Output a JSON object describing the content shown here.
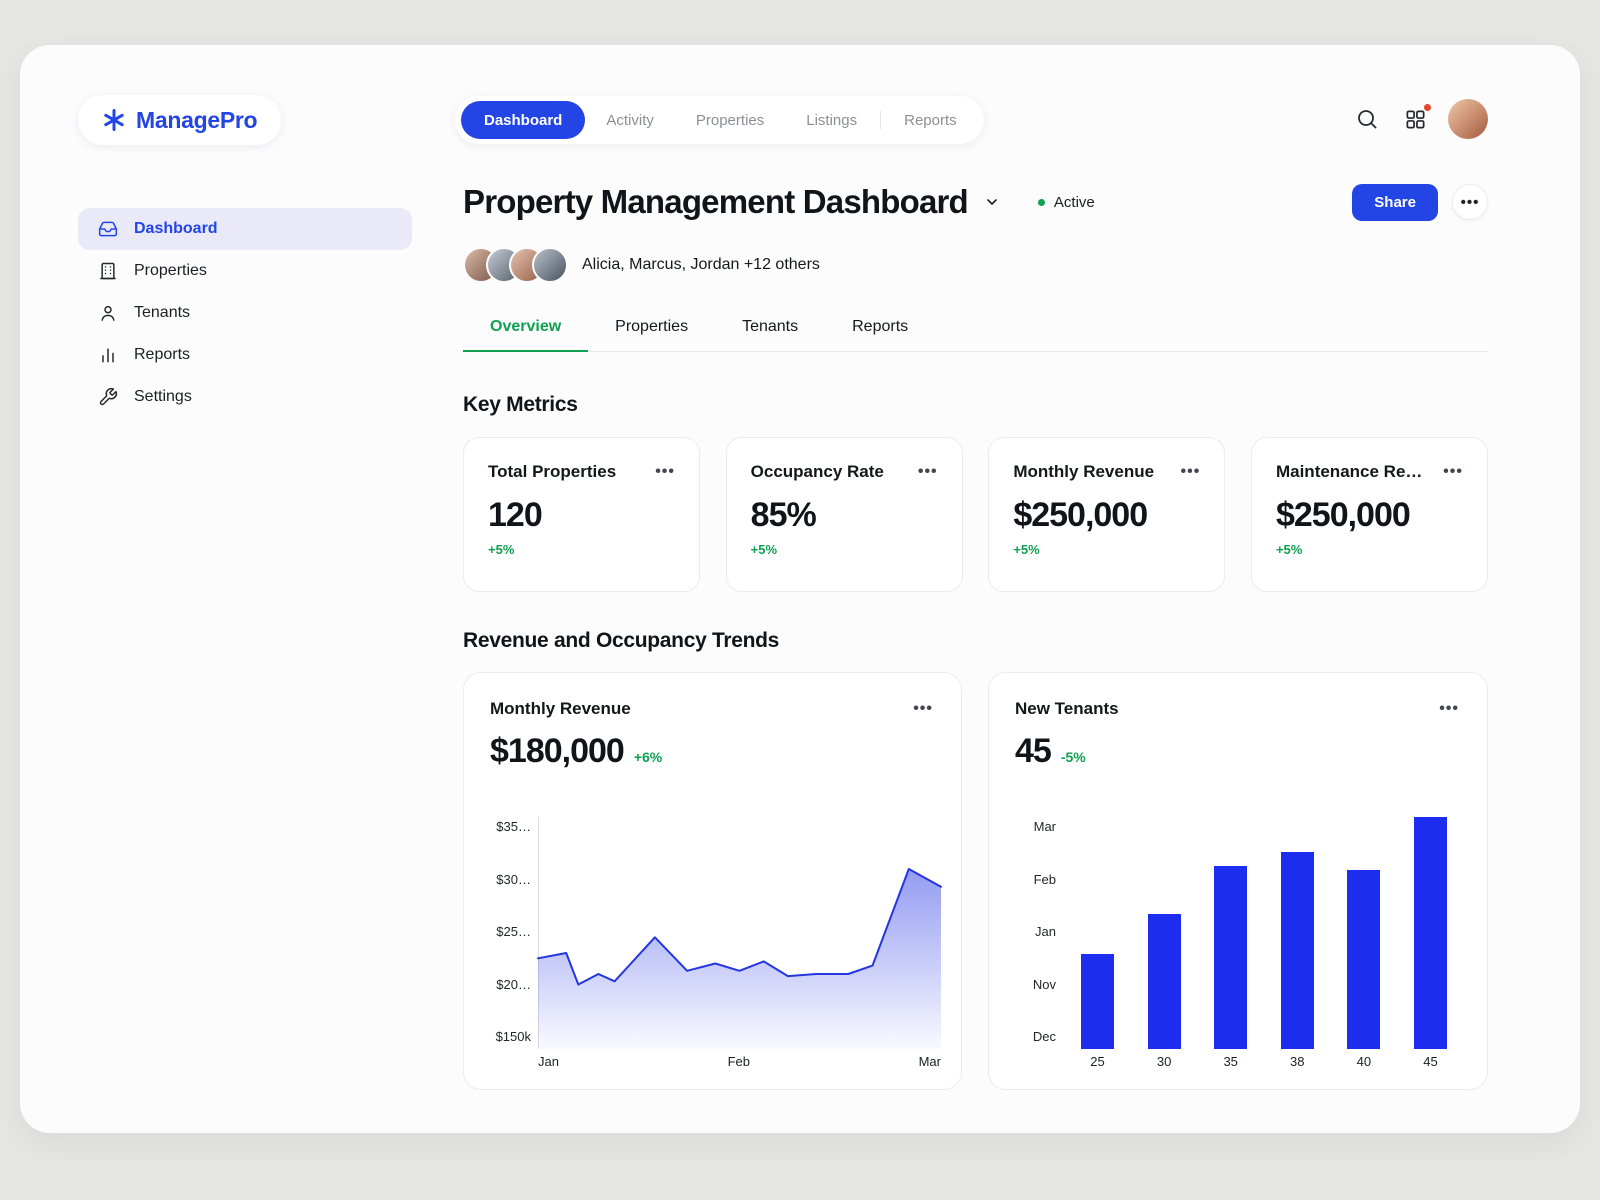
{
  "colors": {
    "accent_blue": "#2445e6",
    "bar_blue": "#1d2df0",
    "positive_green": "#0fa151",
    "notification_red": "#e8472b",
    "sidebar_active_bg": "#e9e9f8"
  },
  "brand": {
    "name": "ManagePro",
    "logo_icon": "asterisk-icon"
  },
  "top_nav": {
    "items": [
      {
        "label": "Dashboard",
        "active": true
      },
      {
        "label": "Activity",
        "active": false
      },
      {
        "label": "Properties",
        "active": false
      },
      {
        "label": "Listings",
        "active": false
      },
      {
        "label": "Reports",
        "active": false
      }
    ]
  },
  "header_right": {
    "icons": [
      "search-icon",
      "apps-grid-icon",
      "user-avatar"
    ],
    "has_notification": true
  },
  "sidebar": {
    "items": [
      {
        "label": "Dashboard",
        "icon": "tray-icon",
        "active": true
      },
      {
        "label": "Properties",
        "icon": "building-icon",
        "active": false
      },
      {
        "label": "Tenants",
        "icon": "person-icon",
        "active": false
      },
      {
        "label": "Reports",
        "icon": "bar-chart-icon",
        "active": false
      },
      {
        "label": "Settings",
        "icon": "wrench-icon",
        "active": false
      }
    ]
  },
  "page": {
    "title": "Property Management Dashboard",
    "status": "Active",
    "collaborators": "Alicia, Marcus, Jordan +12 others",
    "share_button": "Share"
  },
  "tabs": [
    {
      "label": "Overview",
      "active": true
    },
    {
      "label": "Properties",
      "active": false
    },
    {
      "label": "Tenants",
      "active": false
    },
    {
      "label": "Reports",
      "active": false
    }
  ],
  "key_metrics": {
    "heading": "Key Metrics",
    "cards": [
      {
        "label": "Total Properties",
        "value": "120",
        "delta": "+5%"
      },
      {
        "label": "Occupancy Rate",
        "value": "85%",
        "delta": "+5%"
      },
      {
        "label": "Monthly Revenue",
        "value": "$250,000",
        "delta": "+5%"
      },
      {
        "label": "Maintenance Re…",
        "value": "$250,000",
        "delta": "+5%"
      }
    ]
  },
  "trends": {
    "heading": "Revenue and Occupancy Trends"
  },
  "chart_data": [
    {
      "type": "area-line",
      "title": "Monthly Revenue",
      "value": "$180,000",
      "delta": "+6%",
      "x_labels": [
        "Jan",
        "Feb",
        "Mar"
      ],
      "y_labels": [
        "$35…",
        "$30…",
        "$25…",
        "$20…",
        "$150k"
      ],
      "y_range": [
        15,
        35
      ],
      "line_color": "#2336e0",
      "points": [
        {
          "x": 0.0,
          "v": 22.5
        },
        {
          "x": 0.07,
          "v": 23.0
        },
        {
          "x": 0.1,
          "v": 20.0
        },
        {
          "x": 0.15,
          "v": 21.0
        },
        {
          "x": 0.19,
          "v": 20.3
        },
        {
          "x": 0.29,
          "v": 24.5
        },
        {
          "x": 0.37,
          "v": 21.3
        },
        {
          "x": 0.44,
          "v": 22.0
        },
        {
          "x": 0.5,
          "v": 21.3
        },
        {
          "x": 0.56,
          "v": 22.2
        },
        {
          "x": 0.62,
          "v": 20.8
        },
        {
          "x": 0.69,
          "v": 21.0
        },
        {
          "x": 0.77,
          "v": 21.0
        },
        {
          "x": 0.83,
          "v": 21.8
        },
        {
          "x": 0.92,
          "v": 31.0
        },
        {
          "x": 1.0,
          "v": 29.3
        }
      ]
    },
    {
      "type": "bar",
      "title": "New Tenants",
      "value": "45",
      "delta": "-5%",
      "x_labels": [
        "25",
        "30",
        "35",
        "38",
        "40",
        "45"
      ],
      "y_labels": [
        "Mar",
        "Feb",
        "Jan",
        "Nov",
        "Dec"
      ],
      "relative_heights": [
        0.41,
        0.58,
        0.79,
        0.85,
        0.77,
        1.0
      ],
      "bar_color": "#1d2df0"
    }
  ]
}
